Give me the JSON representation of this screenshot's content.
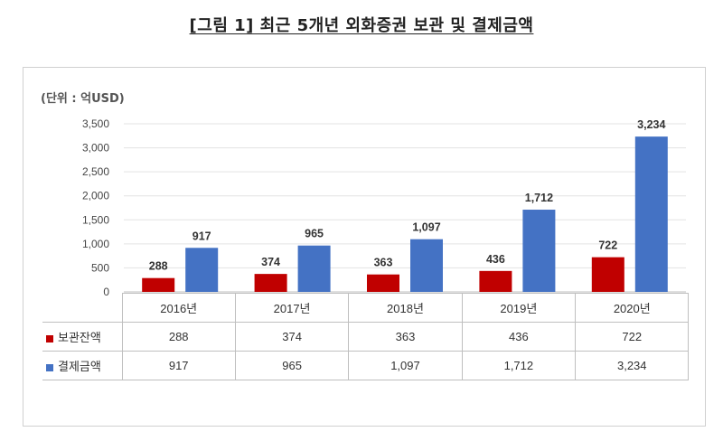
{
  "title": "[그림 1] 최근 5개년 외화증권 보관 및 결제금액",
  "chart_data": {
    "type": "bar",
    "unit_label": "(단위 : 억USD)",
    "categories": [
      "2016년",
      "2017년",
      "2018년",
      "2019년",
      "2020년"
    ],
    "series": [
      {
        "name": "보관잔액",
        "color": "#c00000",
        "values": [
          288,
          374,
          363,
          436,
          722
        ],
        "labels": [
          "288",
          "374",
          "363",
          "436",
          "722"
        ]
      },
      {
        "name": "결제금액",
        "color": "#4472c4",
        "values": [
          917,
          965,
          1097,
          1712,
          3234
        ],
        "labels": [
          "917",
          "965",
          "1,097",
          "1,712",
          "3,234"
        ]
      }
    ],
    "ylim": [
      0,
      3500
    ],
    "yticks": [
      "0",
      "500",
      "1,000",
      "1,500",
      "2,000",
      "2,500",
      "3,000",
      "3,500"
    ],
    "grid": true,
    "legend": "data-table"
  }
}
